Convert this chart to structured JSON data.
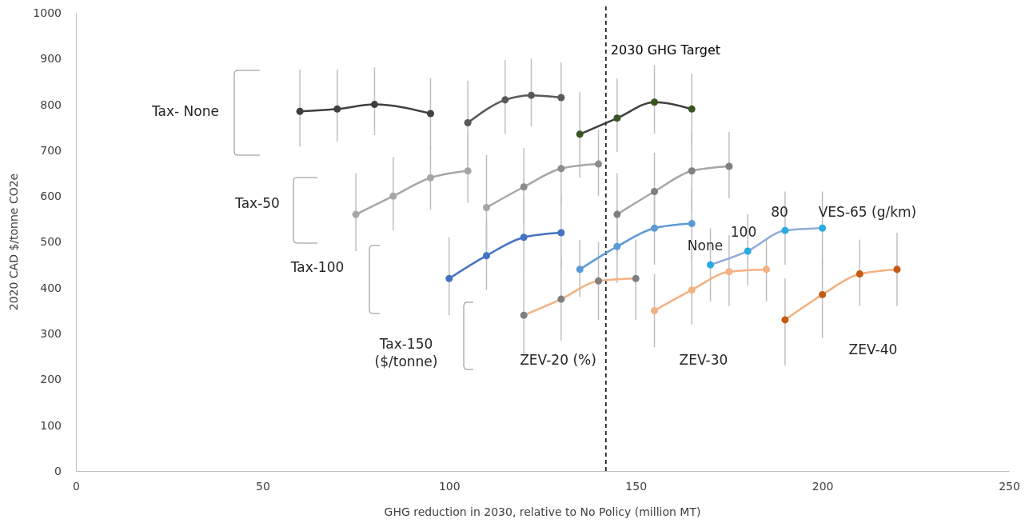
{
  "chart_data": {
    "type": "line",
    "xlabel": "GHG reduction in 2030, relative to No Policy (million MT)",
    "ylabel": "2020 CAD $/tonne CO2e",
    "xlim": [
      0,
      250
    ],
    "xticks": [
      0,
      50,
      100,
      150,
      200,
      250
    ],
    "ylim": [
      0,
      1000
    ],
    "yticks": [
      0,
      100,
      200,
      300,
      400,
      500,
      600,
      700,
      800,
      900,
      1000
    ],
    "grid": false,
    "marker": "circle",
    "line_style": "solid",
    "series": [
      {
        "color": "#404040",
        "x": [
          60,
          70,
          80,
          95
        ],
        "values": [
          785,
          790,
          800,
          780
        ],
        "errors": [
          [
            708,
            876
          ],
          [
            719,
            876
          ],
          [
            733,
            881
          ],
          [
            700,
            857
          ]
        ]
      },
      {
        "color": "#595959",
        "x": [
          105,
          115,
          122,
          130
        ],
        "values": [
          760,
          810,
          820,
          815
        ],
        "errors": [
          [
            665,
            852
          ],
          [
            736,
            897
          ],
          [
            752,
            900
          ],
          [
            740,
            892
          ]
        ]
      },
      {
        "color": "#404040",
        "colors": [
          "#375623",
          "#375623",
          "#375623",
          "#375623"
        ],
        "x": [
          135,
          145,
          155,
          165
        ],
        "values": [
          735,
          770,
          805,
          790
        ],
        "errors": [
          [
            640,
            827
          ],
          [
            696,
            857
          ],
          [
            736,
            886
          ],
          [
            710,
            867
          ]
        ]
      },
      {
        "color": "#a6a6a6",
        "x": [
          75,
          85,
          95,
          105
        ],
        "values": [
          560,
          600,
          640,
          655
        ],
        "errors": [
          [
            480,
            650
          ],
          [
            525,
            685
          ],
          [
            570,
            710
          ],
          [
            585,
            735
          ]
        ]
      },
      {
        "color": "#a6a6a6",
        "colors": [
          "#a6a6a6",
          "#8c8c8c",
          "#8c8c8c",
          "#8c8c8c"
        ],
        "x": [
          110,
          120,
          130,
          140
        ],
        "values": [
          575,
          620,
          660,
          670
        ],
        "errors": [
          [
            460,
            690
          ],
          [
            540,
            705
          ],
          [
            580,
            740
          ],
          [
            600,
            745
          ]
        ]
      },
      {
        "color": "#a6a6a6",
        "colors": [
          "#7f7f7f",
          "#7f7f7f",
          "#7f7f7f",
          "#7f7f7f"
        ],
        "x": [
          145,
          155,
          165,
          175
        ],
        "values": [
          560,
          610,
          655,
          665
        ],
        "errors": [
          [
            470,
            650
          ],
          [
            530,
            695
          ],
          [
            570,
            740
          ],
          [
            595,
            740
          ]
        ]
      },
      {
        "color": "#4472c4",
        "x": [
          100,
          110,
          120,
          130
        ],
        "values": [
          420,
          470,
          510,
          520
        ],
        "errors": [
          [
            340,
            510
          ],
          [
            395,
            545
          ],
          [
            430,
            600
          ],
          [
            440,
            600
          ]
        ]
      },
      {
        "color": "#5b9bd5",
        "x": [
          135,
          145,
          155,
          165
        ],
        "values": [
          440,
          490,
          530,
          540
        ],
        "errors": [
          [
            380,
            505
          ],
          [
            410,
            570
          ],
          [
            450,
            610
          ],
          [
            460,
            620
          ]
        ]
      },
      {
        "color": "#8faadc",
        "colors": [
          "#29abe2",
          "#29abe2",
          "#29abe2",
          "#29abe2"
        ],
        "x": [
          170,
          180,
          190,
          200
        ],
        "values": [
          450,
          480,
          525,
          530
        ],
        "errors": [
          [
            370,
            530
          ],
          [
            405,
            560
          ],
          [
            450,
            610
          ],
          [
            450,
            610
          ]
        ]
      },
      {
        "color": "#f4b183",
        "colors": [
          "#7f7f7f",
          "#7f7f7f",
          "#7f7f7f",
          "#7f7f7f"
        ],
        "x": [
          120,
          130,
          140,
          150
        ],
        "values": [
          340,
          375,
          415,
          420
        ],
        "errors": [
          [
            250,
            430
          ],
          [
            285,
            465
          ],
          [
            330,
            500
          ],
          [
            330,
            505
          ]
        ]
      },
      {
        "color": "#f4b183",
        "x": [
          155,
          165,
          175,
          185
        ],
        "values": [
          350,
          395,
          435,
          440
        ],
        "errors": [
          [
            270,
            430
          ],
          [
            320,
            475
          ],
          [
            360,
            515
          ],
          [
            370,
            505
          ]
        ]
      },
      {
        "color": "#f4b183",
        "colors": [
          "#c55a11",
          "#c55a11",
          "#c55a11",
          "#c55a11"
        ],
        "x": [
          190,
          200,
          210,
          220
        ],
        "values": [
          330,
          385,
          430,
          440
        ],
        "errors": [
          [
            230,
            420
          ],
          [
            290,
            460
          ],
          [
            360,
            505
          ],
          [
            360,
            520
          ]
        ]
      }
    ],
    "ref_lines": [
      {
        "axis": "x",
        "value": 142,
        "label": "2030  GHG Target",
        "color": "#000000",
        "line_style": "dashed"
      }
    ],
    "annotations": [
      "Tax- None",
      "Tax-50",
      "Tax-100",
      "Tax-150\n($/tonne)",
      "ZEV-20 (%)",
      "ZEV-30",
      "ZEV-40",
      "None",
      "100",
      "80",
      "VES-65 (g/km)"
    ]
  }
}
